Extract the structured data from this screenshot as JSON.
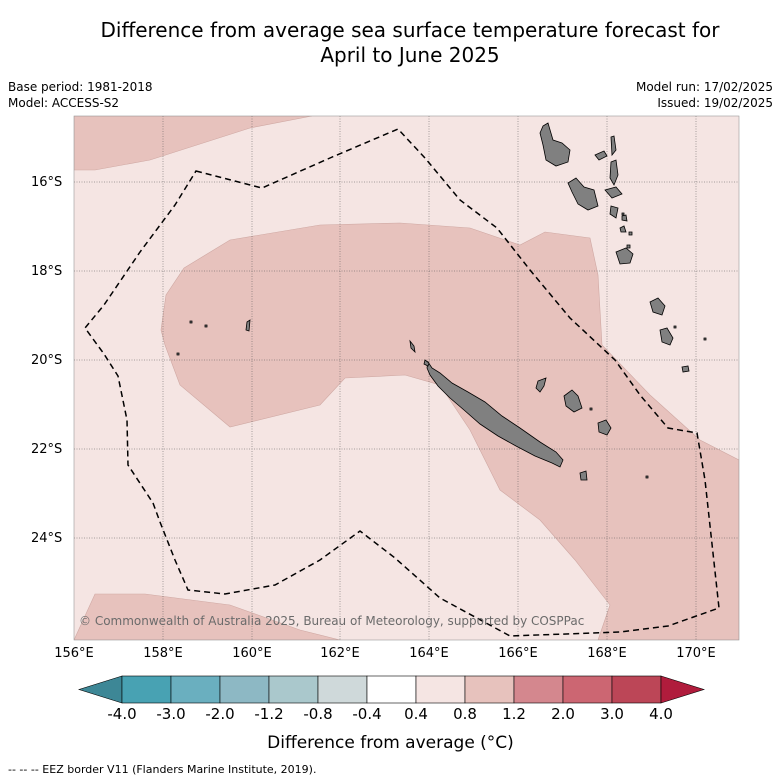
{
  "title_line1": "Difference from average sea surface temperature forecast for",
  "title_line2": "April to June 2025",
  "base_period": "Base period: 1981-2018",
  "model": "Model: ACCESS-S2",
  "model_run": "Model run: 17/02/2025",
  "issued": "Issued: 19/02/2025",
  "copyright": "© Commonwealth of Australia 2025, Bureau of Meteorology, supported by COSPPac",
  "lat_labels": [
    "16°S",
    "18°S",
    "20°S",
    "22°S",
    "24°S"
  ],
  "lon_labels": [
    "156°E",
    "158°E",
    "160°E",
    "162°E",
    "164°E",
    "166°E",
    "168°E",
    "170°E"
  ],
  "colorbar": {
    "title": "Difference from average (°C)",
    "ticks": [
      "-4.0",
      "-3.0",
      "-2.0",
      "-1.2",
      "-0.8",
      "-0.4",
      "0.4",
      "0.8",
      "1.2",
      "2.0",
      "3.0",
      "4.0"
    ],
    "colors": [
      "#48a2b3",
      "#6aafbf",
      "#8db8c4",
      "#aac8cc",
      "#cfd9da",
      "#ffffff",
      "#f5e5e3",
      "#e7c2bd",
      "#d4878e",
      "#cc6672",
      "#bc4657"
    ],
    "under_color": "#3d8796",
    "over_color": "#b01c3c"
  },
  "eez_legend": "--  --  -- EEZ border V11 (Flanders Marine Institute, 2019).",
  "map_colors": {
    "class_0.4_0.8": "#f5e5e3",
    "class_0.8_1.2": "#e7c2bd",
    "land": "#808080"
  }
}
